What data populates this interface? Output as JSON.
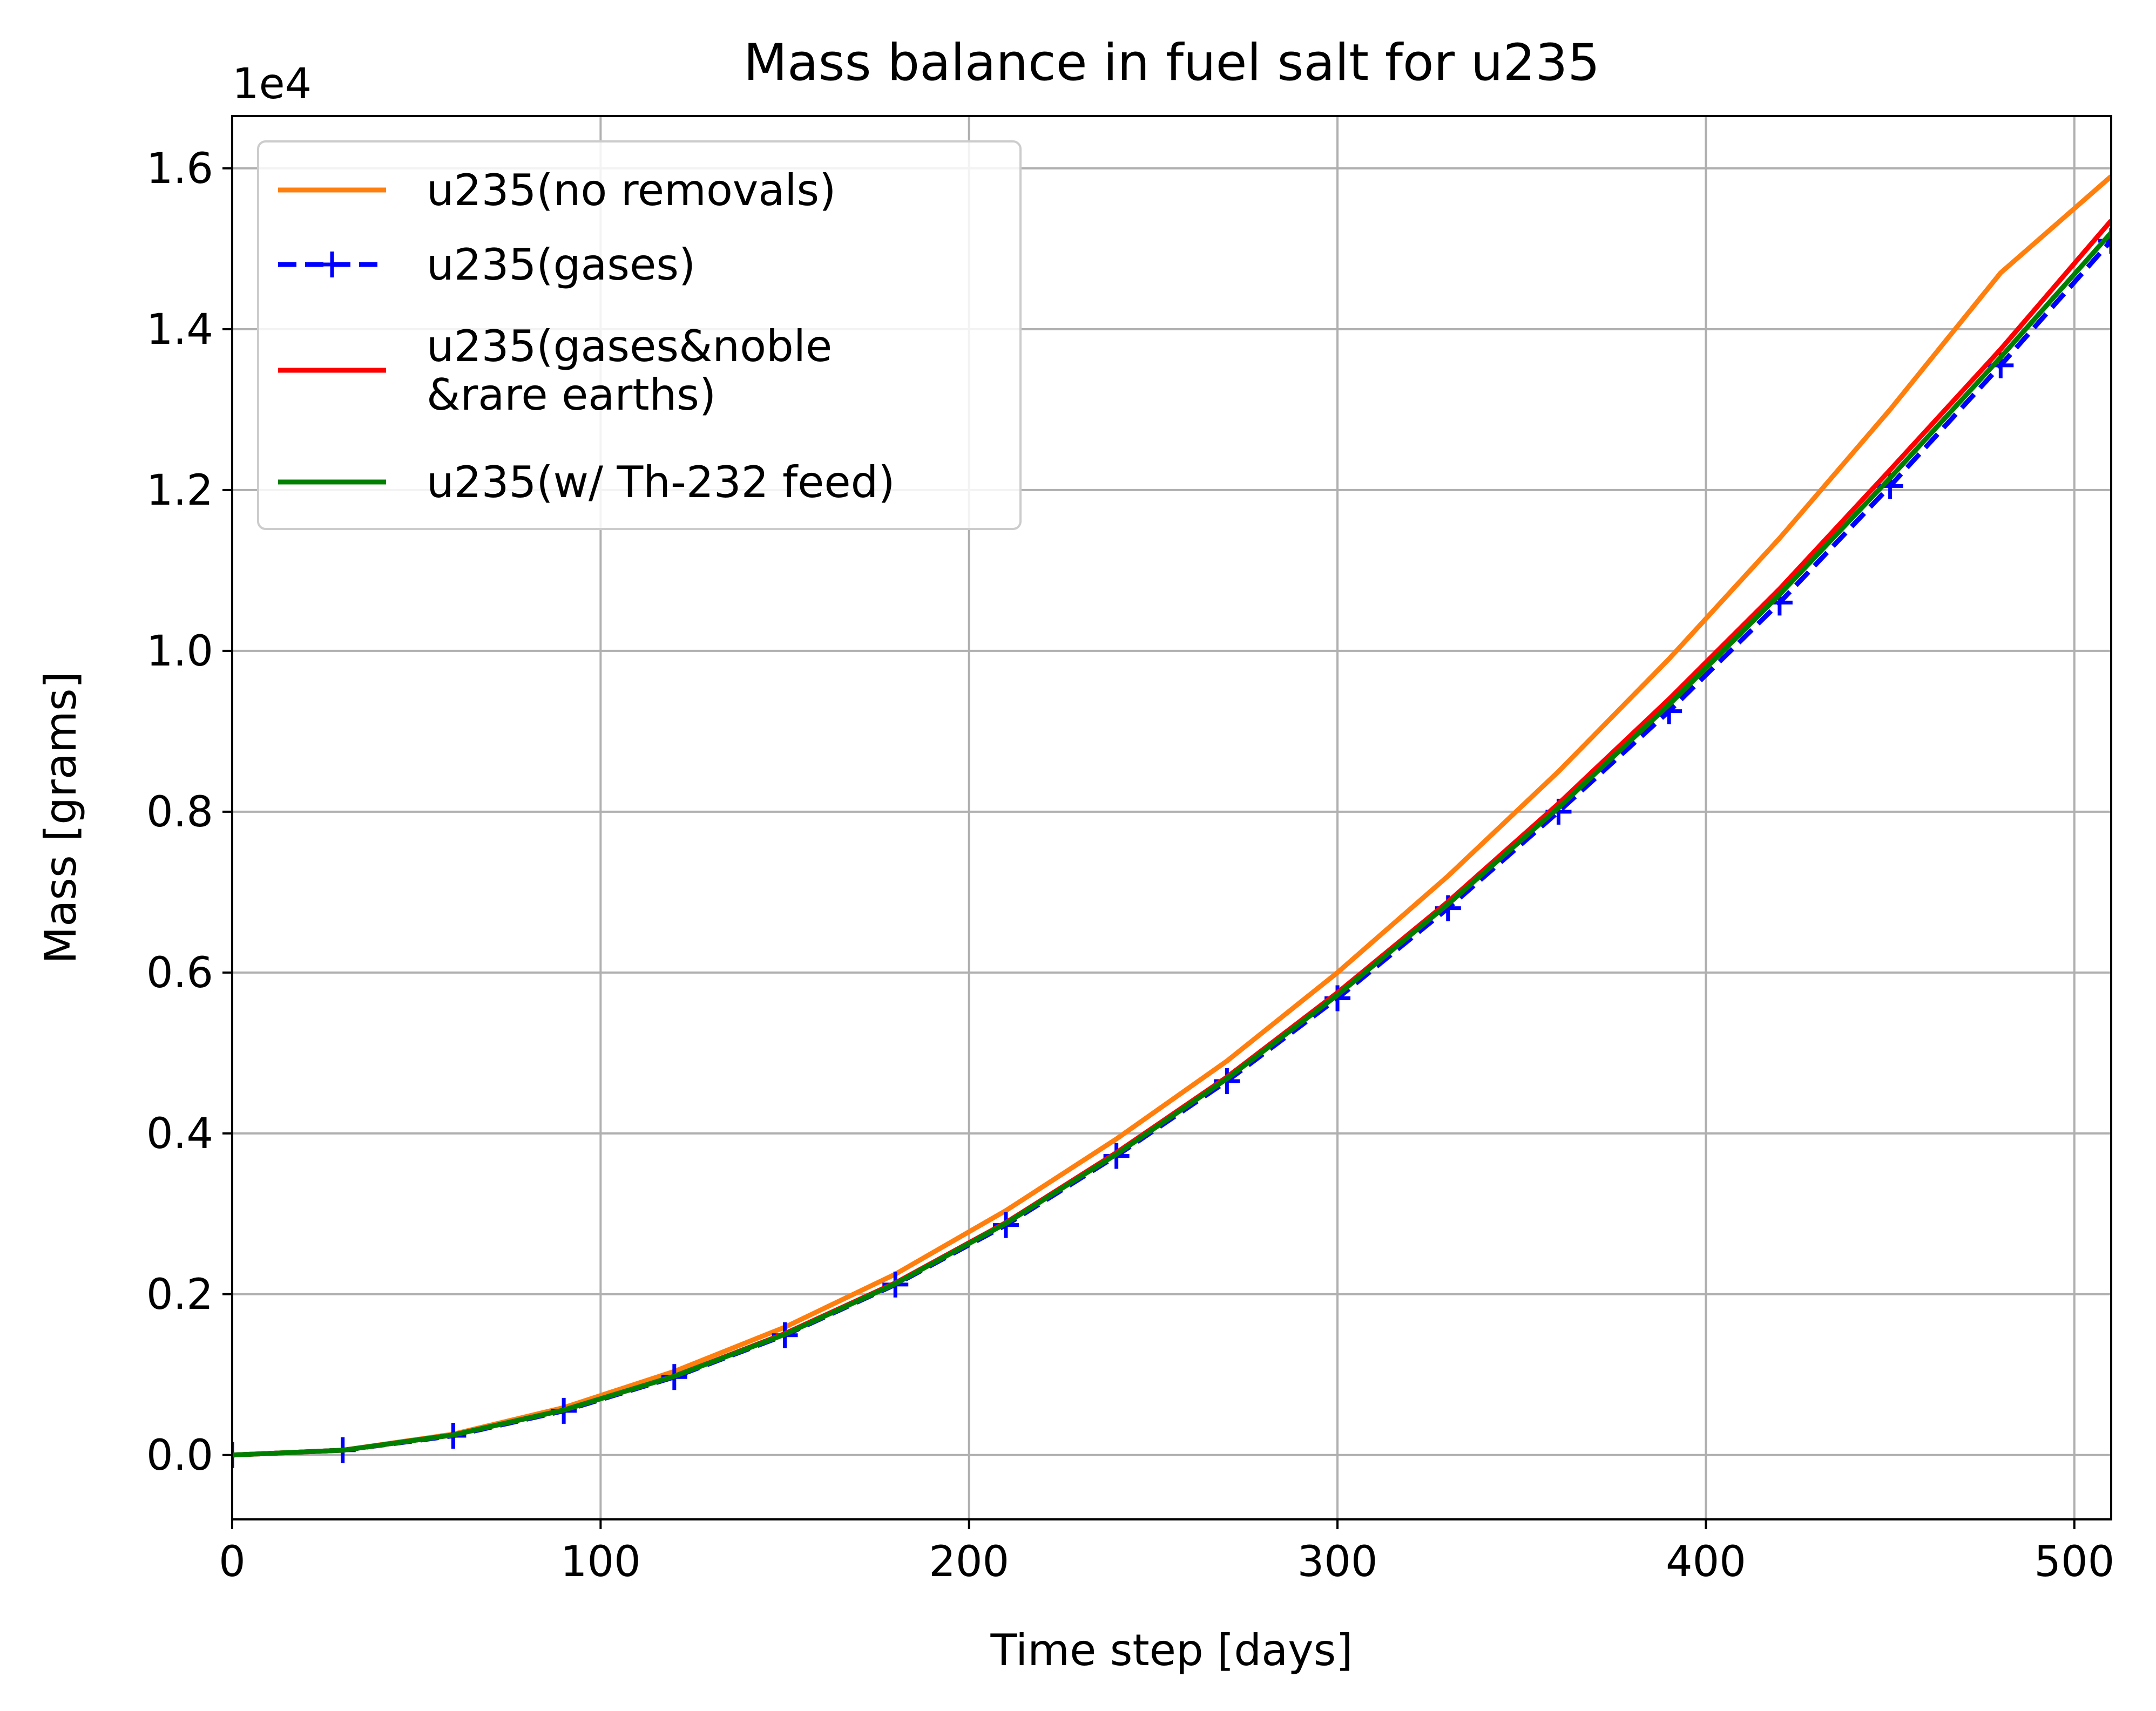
{
  "chart_data": {
    "type": "line",
    "title": "Mass balance in fuel salt for u235",
    "xlabel": "Time step [days]",
    "ylabel": "Mass [grams]",
    "y_multiplier": "1e4",
    "xlim": [
      0,
      510
    ],
    "ylim": [
      -0.08,
      1.665
    ],
    "xticks": [
      0,
      100,
      200,
      300,
      400,
      500
    ],
    "xtick_labels": [
      "0",
      "100",
      "200",
      "300",
      "400",
      "500"
    ],
    "yticks": [
      0.0,
      0.2,
      0.4,
      0.6,
      0.8,
      1.0,
      1.2,
      1.4,
      1.6
    ],
    "ytick_labels": [
      "0.0",
      "0.2",
      "0.4",
      "0.6",
      "0.8",
      "1.0",
      "1.2",
      "1.4",
      "1.6"
    ],
    "grid": true,
    "legend_position": "top-left",
    "x": [
      0,
      30,
      60,
      90,
      120,
      150,
      180,
      210,
      240,
      270,
      300,
      330,
      360,
      390,
      420,
      450,
      480,
      510
    ],
    "series": [
      {
        "name": "u235(no removals)",
        "color": "#ff7f0e",
        "style": "solid",
        "values": [
          0,
          0.006,
          0.026,
          0.059,
          0.104,
          0.159,
          0.225,
          0.304,
          0.393,
          0.49,
          0.6,
          0.72,
          0.85,
          0.99,
          1.14,
          1.3,
          1.47,
          1.59
        ]
      },
      {
        "name": "u235(gases)",
        "color": "#0000ff",
        "style": "dashed-plus",
        "values": [
          0,
          0.006,
          0.024,
          0.055,
          0.097,
          0.149,
          0.212,
          0.286,
          0.372,
          0.465,
          0.568,
          0.68,
          0.8,
          0.925,
          1.06,
          1.205,
          1.355,
          1.51
        ]
      },
      {
        "name": "u235(gases&noble\n&rare earths)",
        "color": "#ff0000",
        "style": "solid",
        "values": [
          0,
          0.006,
          0.025,
          0.056,
          0.098,
          0.151,
          0.214,
          0.289,
          0.376,
          0.47,
          0.575,
          0.688,
          0.81,
          0.94,
          1.077,
          1.225,
          1.375,
          1.535
        ]
      },
      {
        "name": "u235(w/ Th-232 feed)",
        "color": "#008000",
        "style": "solid",
        "values": [
          0,
          0.006,
          0.025,
          0.056,
          0.098,
          0.15,
          0.213,
          0.288,
          0.374,
          0.468,
          0.572,
          0.685,
          0.805,
          0.933,
          1.07,
          1.215,
          1.365,
          1.52
        ]
      }
    ]
  }
}
